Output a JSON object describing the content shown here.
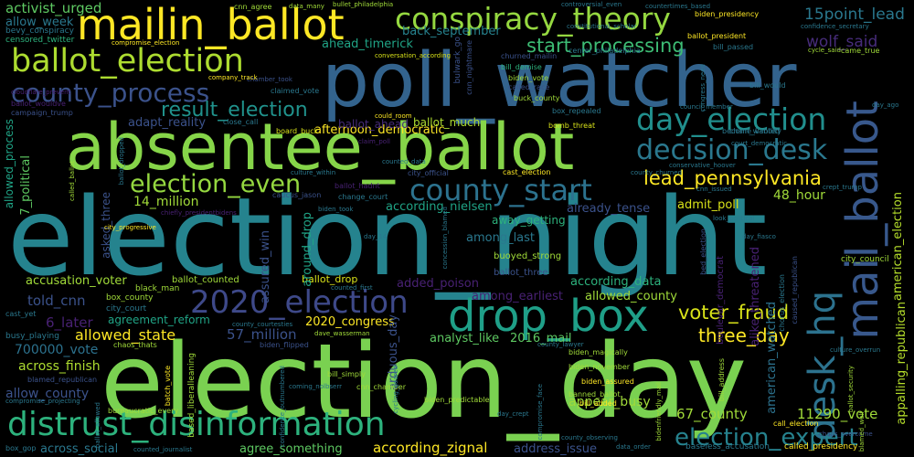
{
  "palette": {
    "background": "#000000",
    "purple": "#46327e",
    "blue": "#365c8d",
    "teal": "#277f8e",
    "green_teal": "#1fa187",
    "green": "#4ac16d",
    "yellow_green": "#a0da39",
    "yellow": "#fde725"
  },
  "words": {
    "election_night": "election_night",
    "election_day": "election_day",
    "poll_watcher": "poll_watcher",
    "absentee_ballot": "absentee_ballot",
    "mail_ballot": "mail_ballot",
    "mailin_ballot": "mailin_ballot",
    "conspiracy_theory": "conspiracy_theory",
    "ballot_election": "ballot_election",
    "county_process": "county_process",
    "distrust_disinformation": "distrust_disinformation",
    "drop_box": "drop_box",
    "election_2020": "2020_election",
    "day_election": "day_election",
    "decision_desk": "decision_desk",
    "county_start": "county_start",
    "election_even": "election_even",
    "desk_hq": "desk_hq",
    "lead_pennsylvania": "lead_pennsylvania",
    "election_expert": "election_expert",
    "start_processing": "start_processing",
    "result_election": "result_election",
    "voter_fraud": "voter_fraud",
    "point_lead_15": "15point_lead",
    "wolf_said": "wolf_said",
    "three_day": "three_day",
    "activist_urged": "activist_urged",
    "allow_week": "allow_week",
    "ahead_timerick": "ahead_timerick",
    "back_september": "back_september",
    "adapt_reality": "adapt_reality",
    "afternoon_democratic": "afternoon_democratic",
    "ballot_much": "ballot_much",
    "ballot_ahead": "ballot_ahead",
    "million_14": "14_million",
    "hour_48": "48_hour",
    "according_nielsen": "according_nielsen",
    "admit_poll": "admit_poll",
    "already_tense": "already_tense",
    "among_last": "among_last",
    "away_getting": "away_getting",
    "buoyed_strong": "buoyed_strong",
    "ballot_three": "ballot_three",
    "according_data": "according_data",
    "allowed_county": "allowed_county",
    "added_poison": "added_poison",
    "among_earliest": "among_earliest",
    "told_cnn": "told_cnn",
    "accusation_voter": "accusation_voter",
    "ballot_counted": "ballot_counted",
    "ballot_drop": "ballot_drop",
    "agreement_reform": "agreement_reform",
    "later_6": "6_later",
    "allowed_state": "allowed_state",
    "million_57": "57_million",
    "congress_2020": "2020_congress",
    "analyst_like": "analyst_like",
    "mail_2016": "2016_mail",
    "vote_700000": "700000_vote",
    "across_finish": "across_finish",
    "allow_county": "allow_county",
    "across_social": "across_social",
    "agree_something": "agree_something",
    "according_zignal": "according_zignal",
    "address_issue": "address_issue",
    "appear_busy": "appear_busy",
    "county_67": "67_county",
    "vote_11290": "11290_vote",
    "american_watched": "american_watched",
    "american_election": "american_election",
    "appalling_republican": "appalling_republican",
    "around_drop": "around_drop",
    "assured_win": "assured_win",
    "arduous_day": "arduous_day",
    "asked_three": "asked_three",
    "allowed_process": "allowed_process",
    "political_7": "7_political",
    "alike_threatened": "alike_threatened",
    "bevy_conspiracy": "bevy_conspiracy",
    "censored_twitter": "censored_twitter",
    "cnn_agree": "cnn_agree",
    "data_many": "data_many",
    "compromise_election": "compromise_election",
    "biden_presidency": "biden_presidency",
    "confidence_secretary": "confidence_secretary",
    "bill_passed": "bill_passed",
    "came_true": "came_true",
    "churned_mailin": "churned_mailin",
    "biden_vote": "biden_vote",
    "called_race": "called_race",
    "buck_county": "buck_county",
    "bill_demise": "bill_demise",
    "box_repealed": "box_repealed",
    "chain_wanted": "chain_wanted",
    "bomb_threat": "bomb_threat",
    "close_call": "close_call",
    "board_buck": "board_buck",
    "claimed_vote": "claimed_vote",
    "chamber_took": "chamber_took",
    "campaign_trump": "campaign_trump",
    "company_track": "company_track",
    "cast_election": "cast_election",
    "ballot_hadnt": "ballot_hadnt",
    "change_court": "change_court",
    "caucus_jason": "caucus_jason",
    "city_official": "city_official",
    "biden_took": "biden_took",
    "city_progressive": "city_progressive",
    "city_council": "city_council",
    "black_man": "black_man",
    "box_county": "box_county",
    "city_court": "city_court",
    "cast_yet": "cast_yet",
    "chaos_thats": "chaos_thats",
    "biden_flipped": "biden_flipped",
    "busy_playing": "busy_playing",
    "blamed_republican": "blamed_republican",
    "compromise_projecting": "compromise_projecting",
    "bureaucratic_every": "bureaucratic_every",
    "based_liberalleaning": "based_liberalleaning",
    "bill_simply": "bill_simply",
    "cnn_chamber": "cnn_chamber",
    "biden_predictable": "biden_predictable",
    "batch_vote": "batch_vote",
    "biden_magically": "biden_magically",
    "biden_november": "biden_november",
    "biden_assured": "biden_assured",
    "banned_ballot": "banned_ballot",
    "bill_added": "bill_added",
    "called_presidency": "called_presidency",
    "baseless_accusation": "baseless_accusation",
    "call_election": "call_election",
    "box_gop": "box_gop",
    "counted_journalist": "counted_journalist",
    "ballot_president": "ballot_president",
    "center_philadelphia": "center_philadelphia",
    "bulwark_go": "bulwark_go",
    "cnn_nightmare": "cnn_nightmare",
    "conversation_according": "conversation_according",
    "bill_would": "bill_would",
    "become_liability": "become_liability",
    "council_member": "council_member",
    "court_democratic": "court_democratic",
    "culture_within": "culture_within",
    "could_room": "could_room",
    "claim_poll": "claim_poll",
    "county_churned": "county_churned",
    "conservative_hoover": "conservative_hoover",
    "cnn_issued": "cnn_issued",
    "look_political": "look_political",
    "crept_trump": "crept_trump",
    "boulevar_democrat": "boulevar_democrat",
    "chorus_election": "chorus_election",
    "caused_republican": "caused_republican",
    "bed_election": "bed_election",
    "ballot_wouldve": "ballot_wouldve",
    "cloudflare_prevent": "cloudflare_prevent",
    "counted_data": "counted_data",
    "ballot_dropped": "ballot_dropped",
    "counted_first": "counted_first",
    "county_courtesties": "county_courtesties",
    "dave_wasserman": "dave_wasserman",
    "county_lawyer": "county_lawyer",
    "compromise_face": "compromise_face",
    "bidenfriendly_mail": "bidenfriendly_mail",
    "bill_address": "bill_address",
    "ballot_security": "ballot_security",
    "chaos_overcome": "chaos_overcome",
    "blamed_wolf": "blamed_wolf",
    "coming_nolbserr": "coming_nolbserr",
    "county_observing": "county_observing",
    "data_order": "data_order",
    "cycle_said": "cycle_said",
    "day_ago": "day_ago",
    "congress_need": "congress_need",
    "day_14": "day_14",
    "day_fiasco": "day_fiasco",
    "cycling_geared": "cycling_geared",
    "culture_overrun": "culture_overrun",
    "ballot_allowed": "ballot_allowed",
    "called_ballot": "called_ballot",
    "chiefly_presidentbidens": "chiefly_presidentbidens",
    "concession_blamed": "concession_blamed",
    "confidence_outnumbered": "confidence_outnumbered",
    "day_crept": "day_crept",
    "controversial_even": "controversial_even",
    "constitutional_scholar": "constitutional_scholar",
    "countertimes_based": "countertimes_based",
    "bullet_philadelphia": "bullet_philadelphia"
  }
}
